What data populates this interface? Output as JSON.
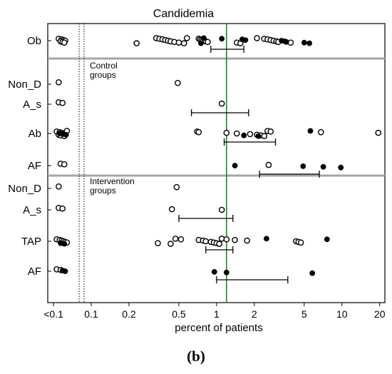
{
  "chart_data": {
    "type": "scatter",
    "title": "Candidemia",
    "xlabel": "percent of patients",
    "ylabel": "",
    "x_scale": "log",
    "xlim": [
      0.045,
      22
    ],
    "x_ticks": [
      {
        "value": 0.05,
        "label": "<0.1"
      },
      {
        "value": 0.1,
        "label": "0.1"
      },
      {
        "value": 0.2,
        "label": "0.2"
      },
      {
        "value": 0.5,
        "label": "0.5"
      },
      {
        "value": 1,
        "label": "1"
      },
      {
        "value": 2,
        "label": "2"
      },
      {
        "value": 5,
        "label": "5"
      },
      {
        "value": 10,
        "label": "10"
      },
      {
        "value": 20,
        "label": "20"
      }
    ],
    "reference_line": {
      "x": 1.2,
      "color": "#1f8a1f"
    },
    "group_labels": [
      {
        "text": "Control\ngroups",
        "before_row": "Non_D"
      },
      {
        "text": "Intervention\ngroups",
        "before_row": "Non_D "
      }
    ],
    "legend": {
      "open_circle": "",
      "filled_circle": ""
    },
    "rows": [
      {
        "label": "Ob",
        "open": [
          0.055,
          0.058,
          0.06,
          0.062,
          0.057,
          0.059,
          0.061,
          0.23,
          0.33,
          0.35,
          0.37,
          0.39,
          0.41,
          0.43,
          0.46,
          0.5,
          0.55,
          0.58,
          0.72,
          0.74,
          0.76,
          0.78,
          0.82,
          0.85,
          1.45,
          1.55,
          2.1,
          2.4,
          2.55,
          2.7,
          2.85,
          3.0,
          3.1,
          3.9
        ],
        "filled": [
          0.75,
          0.79,
          1.1,
          1.6,
          1.7,
          3.3,
          3.5,
          3.6,
          5.0,
          5.5
        ],
        "ci": [
          0.9,
          1.65
        ]
      },
      {
        "label": "Non_D",
        "open": [
          0.055,
          0.49
        ],
        "filled": [],
        "ci": null
      },
      {
        "label": "A_s",
        "open": [
          0.055,
          0.059,
          1.1
        ],
        "filled": [],
        "ci": [
          0.63,
          1.8
        ]
      },
      {
        "label": "Ab",
        "open": [
          0.053,
          0.056,
          0.058,
          0.06,
          0.062,
          0.055,
          0.057,
          0.061,
          0.064,
          0.7,
          0.72,
          1.2,
          1.45,
          1.85,
          2.1,
          2.25,
          2.4,
          2.55,
          2.7,
          6.8,
          19.5
        ],
        "filled": [
          0.056,
          0.06,
          0.063,
          1.65,
          2.15,
          5.6
        ],
        "ci": [
          1.15,
          2.95
        ]
      },
      {
        "label": "AF",
        "open": [
          0.057,
          0.061,
          2.6
        ],
        "filled": [
          1.4,
          4.9,
          7.1,
          9.8
        ],
        "ci": [
          2.2,
          6.6
        ]
      },
      {
        "label": "Non_D",
        "open": [
          0.055,
          0.48
        ],
        "filled": [],
        "ci": null
      },
      {
        "label": "A_s",
        "open": [
          0.055,
          0.059,
          0.44,
          1.1
        ],
        "filled": [],
        "ci": [
          0.5,
          1.35
        ]
      },
      {
        "label": "TAP",
        "open": [
          0.053,
          0.056,
          0.058,
          0.06,
          0.062,
          0.064,
          0.34,
          0.43,
          0.47,
          0.52,
          0.72,
          0.78,
          0.82,
          0.9,
          0.95,
          1.0,
          1.05,
          1.1,
          1.2,
          1.4,
          1.75,
          4.3,
          4.5,
          4.7
        ],
        "filled": [
          0.057,
          0.061,
          2.5,
          7.6
        ],
        "ci": [
          0.82,
          1.35
        ]
      },
      {
        "label": "AF",
        "open": [
          0.053,
          0.057
        ],
        "filled": [
          0.059,
          0.062,
          0.96,
          1.2,
          5.8
        ],
        "ci": [
          1.0,
          3.7
        ]
      }
    ]
  },
  "panel_label": "(b)"
}
